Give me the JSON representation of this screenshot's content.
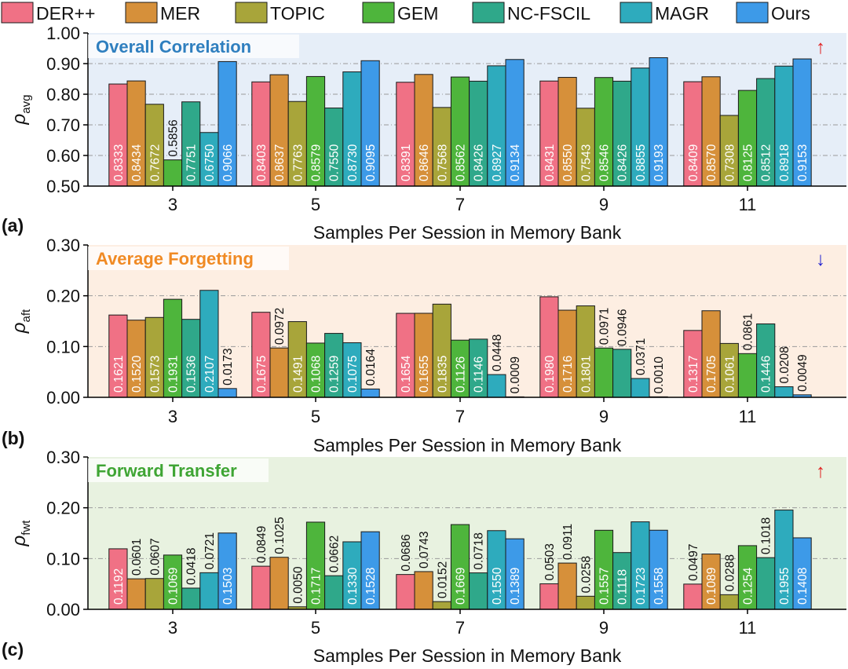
{
  "legend": [
    {
      "name": "DER++",
      "color": "#f07185"
    },
    {
      "name": "MER",
      "color": "#d6903a"
    },
    {
      "name": "TOPIC",
      "color": "#a8a53a"
    },
    {
      "name": "GEM",
      "color": "#4eb53c"
    },
    {
      "name": "NC-FSCIL",
      "color": "#2fa88a"
    },
    {
      "name": "MAGR",
      "color": "#2eabbd"
    },
    {
      "name": "Ours",
      "color": "#3d9ae8"
    }
  ],
  "chart_data": [
    {
      "type": "bar",
      "panel_label": "(a)",
      "title": "Overall Correlation",
      "title_color": "#2f7fbf",
      "background": "#e6eef8",
      "arrow": "↑",
      "arrow_color": "#e02020",
      "ylabel_sym": "ρ",
      "ylabel_sub": "avg",
      "xlabel": "Samples Per Session in Memory Bank",
      "categories": [
        "3",
        "5",
        "7",
        "9",
        "11"
      ],
      "ylim": [
        0.5,
        1.0
      ],
      "yticks": [
        "0.50",
        "0.60",
        "0.70",
        "0.80",
        "0.90",
        "1.00"
      ],
      "grid": true,
      "series": [
        {
          "name": "DER++",
          "values": [
            0.8333,
            0.8403,
            0.8391,
            0.8431,
            0.8409
          ],
          "labels": [
            "0.8333",
            "0.8403",
            "0.8391",
            "0.8431",
            "0.8409"
          ]
        },
        {
          "name": "MER",
          "values": [
            0.8434,
            0.8637,
            0.8646,
            0.855,
            0.857
          ],
          "labels": [
            "0.8434",
            "0.8637",
            "0.8646",
            "0.8550",
            "0.8570"
          ]
        },
        {
          "name": "TOPIC",
          "values": [
            0.7672,
            0.7763,
            0.7568,
            0.7543,
            0.7308
          ],
          "labels": [
            "0.7672",
            "0.7763",
            "0.7568",
            "0.7543",
            "0.7308"
          ]
        },
        {
          "name": "GEM",
          "values": [
            0.5856,
            0.8579,
            0.8562,
            0.8546,
            0.8125
          ],
          "labels": [
            "0.5856",
            "0.8579",
            "0.8562",
            "0.8546",
            "0.8125"
          ]
        },
        {
          "name": "NC-FSCIL",
          "values": [
            0.7751,
            0.755,
            0.8426,
            0.8426,
            0.8512
          ],
          "labels": [
            "0.7751",
            "0.7550",
            "0.8426",
            "0.8426",
            "0.8512"
          ]
        },
        {
          "name": "MAGR",
          "values": [
            0.675,
            0.873,
            0.8927,
            0.8855,
            0.8918
          ],
          "labels": [
            "0.6750",
            "0.8730",
            "0.8927",
            "0.8855",
            "0.8918"
          ]
        },
        {
          "name": "Ours",
          "values": [
            0.9066,
            0.9095,
            0.9134,
            0.9193,
            0.9153
          ],
          "labels": [
            "0.9066",
            "0.9095",
            "0.9134",
            "0.9193",
            "0.9153"
          ]
        }
      ]
    },
    {
      "type": "bar",
      "panel_label": "(b)",
      "title": "Average Forgetting",
      "title_color": "#f08a24",
      "background": "#fdeee2",
      "arrow": "↓",
      "arrow_color": "#2020d0",
      "ylabel_sym": "ρ",
      "ylabel_sub": "aft",
      "xlabel": "Samples Per Session in Memory Bank",
      "categories": [
        "3",
        "5",
        "7",
        "9",
        "11"
      ],
      "ylim": [
        0.0,
        0.3
      ],
      "yticks": [
        "0.00",
        "0.10",
        "0.20",
        "0.30"
      ],
      "grid": true,
      "series": [
        {
          "name": "DER++",
          "values": [
            0.1621,
            0.1675,
            0.1654,
            0.198,
            0.1317
          ],
          "labels": [
            "0.1621",
            "0.1675",
            "0.1654",
            "0.1980",
            "0.1317"
          ]
        },
        {
          "name": "MER",
          "values": [
            0.152,
            0.0972,
            0.1655,
            0.1716,
            0.1705
          ],
          "labels": [
            "0.1520",
            "0.0972",
            "0.1655",
            "0.1716",
            "0.1705"
          ]
        },
        {
          "name": "TOPIC",
          "values": [
            0.1573,
            0.1491,
            0.1835,
            0.1801,
            0.1061
          ],
          "labels": [
            "0.1573",
            "0.1491",
            "0.1835",
            "0.1801",
            "0.1061"
          ]
        },
        {
          "name": "GEM",
          "values": [
            0.1931,
            0.1068,
            0.1126,
            0.0971,
            0.0861
          ],
          "labels": [
            "0.1931",
            "0.1068",
            "0.1126",
            "0.0971",
            "0.0861"
          ]
        },
        {
          "name": "NC-FSCIL",
          "values": [
            0.1536,
            0.1259,
            0.1146,
            0.0946,
            0.1446
          ],
          "labels": [
            "0.1536",
            "0.1259",
            "0.1146",
            "0.0946",
            "0.1446"
          ]
        },
        {
          "name": "MAGR",
          "values": [
            0.2107,
            0.1075,
            0.0448,
            0.0371,
            0.0208
          ],
          "labels": [
            "0.2107",
            "0.1075",
            "0.0448",
            "0.0371",
            "0.0208"
          ]
        },
        {
          "name": "Ours",
          "values": [
            0.0173,
            0.0164,
            0.0009,
            0.001,
            0.0049
          ],
          "labels": [
            "0.0173",
            "0.0164",
            "0.0009",
            "0.0010",
            "0.0049"
          ]
        }
      ]
    },
    {
      "type": "bar",
      "panel_label": "(c)",
      "title": "Forward Transfer",
      "title_color": "#3fa534",
      "background": "#e8f2e0",
      "arrow": "↑",
      "arrow_color": "#e02020",
      "ylabel_sym": "ρ",
      "ylabel_sub": "fwt",
      "xlabel": "Samples Per Session in Memory Bank",
      "categories": [
        "3",
        "5",
        "7",
        "9",
        "11"
      ],
      "ylim": [
        0.0,
        0.3
      ],
      "yticks": [
        "0.00",
        "0.10",
        "0.20",
        "0.30"
      ],
      "grid": true,
      "series": [
        {
          "name": "DER++",
          "values": [
            0.1192,
            0.0849,
            0.0686,
            0.0503,
            0.0497
          ],
          "labels": [
            "0.1192",
            "0.0849",
            "0.0686",
            "0.0503",
            "0.0497"
          ]
        },
        {
          "name": "MER",
          "values": [
            0.0601,
            0.1025,
            0.0743,
            0.0911,
            0.1089
          ],
          "labels": [
            "0.0601",
            "0.1025",
            "0.0743",
            "0.0911",
            "0.1089"
          ]
        },
        {
          "name": "TOPIC",
          "values": [
            0.0607,
            0.005,
            0.0152,
            0.0258,
            0.0288
          ],
          "labels": [
            "0.0607",
            "0.0050",
            "0.0152",
            "0.0258",
            "0.0288"
          ]
        },
        {
          "name": "GEM",
          "values": [
            0.1069,
            0.1717,
            0.1669,
            0.1557,
            0.1254
          ],
          "labels": [
            "0.1069",
            "0.1717",
            "0.1669",
            "0.1557",
            "0.1254"
          ]
        },
        {
          "name": "NC-FSCIL",
          "values": [
            0.0418,
            0.0662,
            0.0718,
            0.1118,
            0.1018
          ],
          "labels": [
            "0.0418",
            "0.0662",
            "0.0718",
            "0.1118",
            "0.1018"
          ]
        },
        {
          "name": "MAGR",
          "values": [
            0.0721,
            0.133,
            0.155,
            0.1723,
            0.1955
          ],
          "labels": [
            "0.0721",
            "0.1330",
            "0.1550",
            "0.1723",
            "0.1955"
          ]
        },
        {
          "name": "Ours",
          "values": [
            0.1503,
            0.1528,
            0.1389,
            0.1558,
            0.1408
          ],
          "labels": [
            "0.1503",
            "0.1528",
            "0.1389",
            "0.1558",
            "0.1408"
          ]
        }
      ]
    }
  ]
}
